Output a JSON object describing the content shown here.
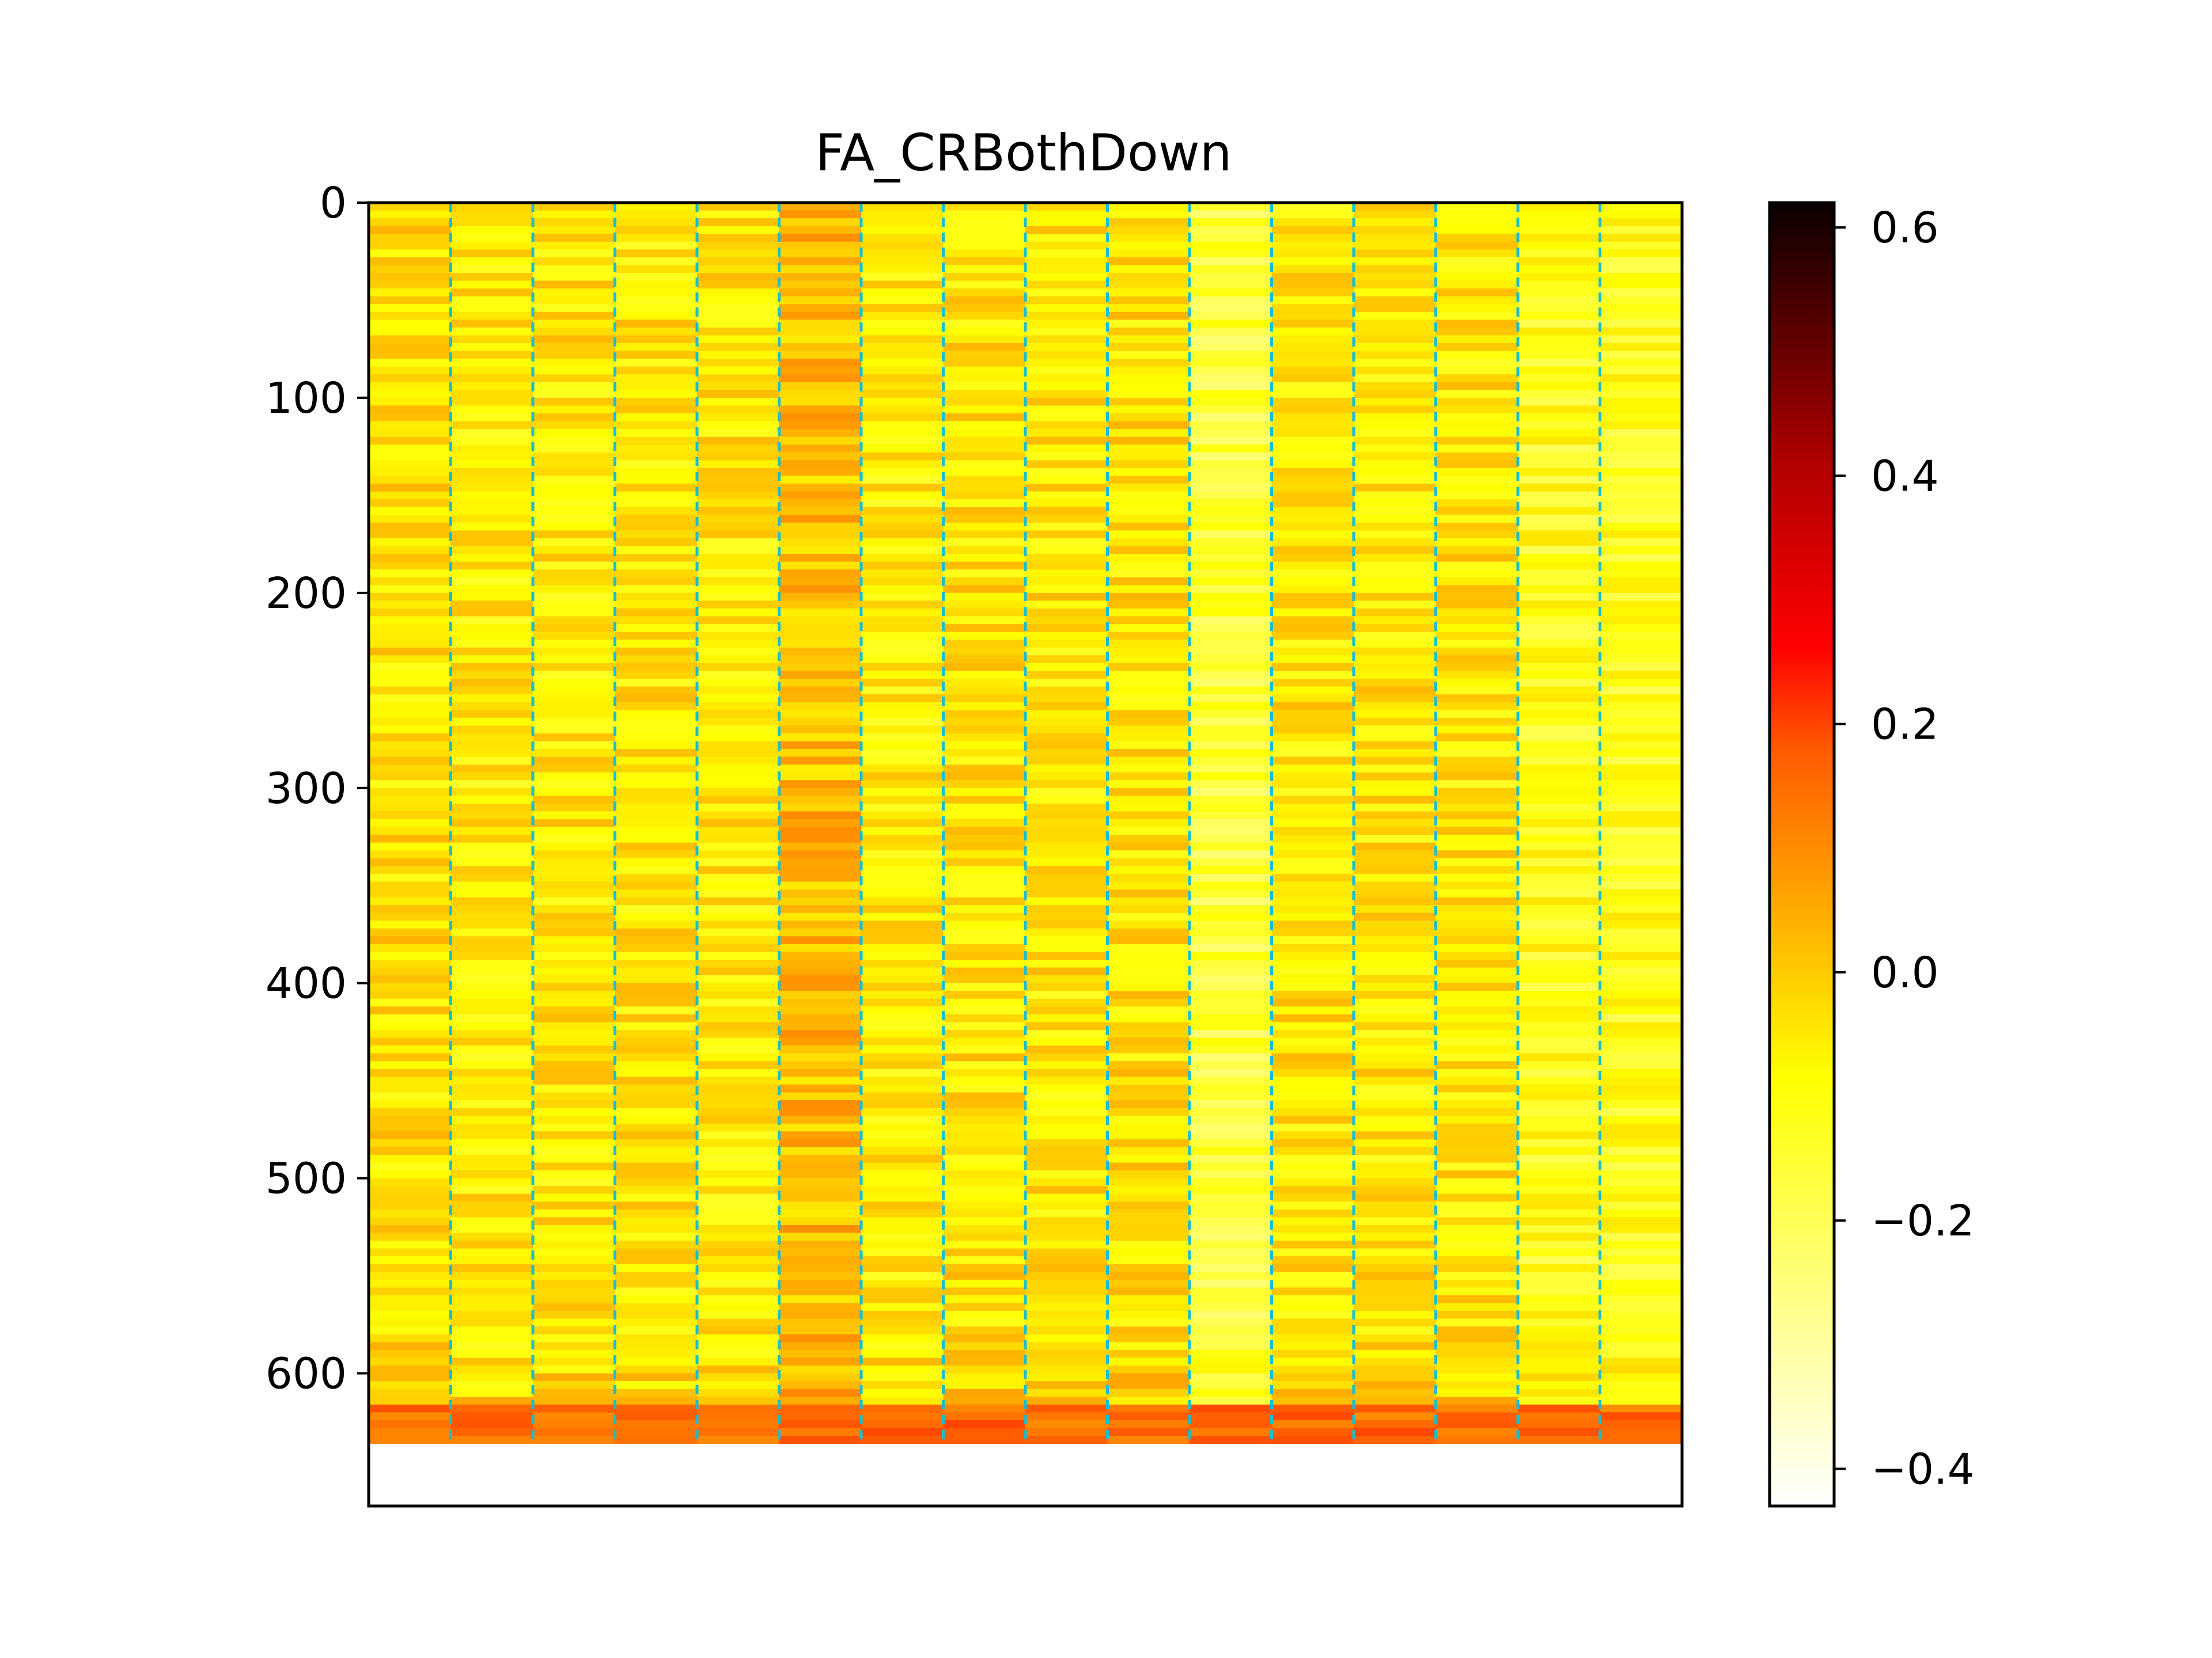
{
  "chart_data": {
    "type": "heatmap",
    "title": "FA_CRBothDown",
    "xlabel": "",
    "ylabel": "",
    "colormap": "hot_r",
    "rows": 636,
    "columns": 16,
    "ylim": [
      668,
      0
    ],
    "yticks": [
      0,
      100,
      200,
      300,
      400,
      500,
      600
    ],
    "y_tick_labels": [
      "0",
      "100",
      "200",
      "300",
      "400",
      "500",
      "600"
    ],
    "xticks": [],
    "column_dividers": [
      1,
      2,
      3,
      4,
      5,
      6,
      7,
      8,
      9,
      10,
      11,
      12,
      13,
      14,
      15
    ],
    "divider_color": "#17becf",
    "column_means": [
      -0.04,
      -0.06,
      -0.05,
      -0.05,
      -0.05,
      0.02,
      -0.06,
      -0.04,
      -0.05,
      -0.04,
      -0.16,
      -0.05,
      -0.05,
      -0.05,
      -0.12,
      -0.12
    ],
    "bottom_rows_mean": 0.15,
    "colorbar": {
      "vmin": -0.43,
      "vmax": 0.62,
      "ticks": [
        0.6,
        0.4,
        0.2,
        0.0,
        -0.2,
        -0.4
      ],
      "tick_labels": [
        "0.6",
        "0.4",
        "0.2",
        "0.0",
        "−0.2",
        "−0.4"
      ]
    }
  }
}
